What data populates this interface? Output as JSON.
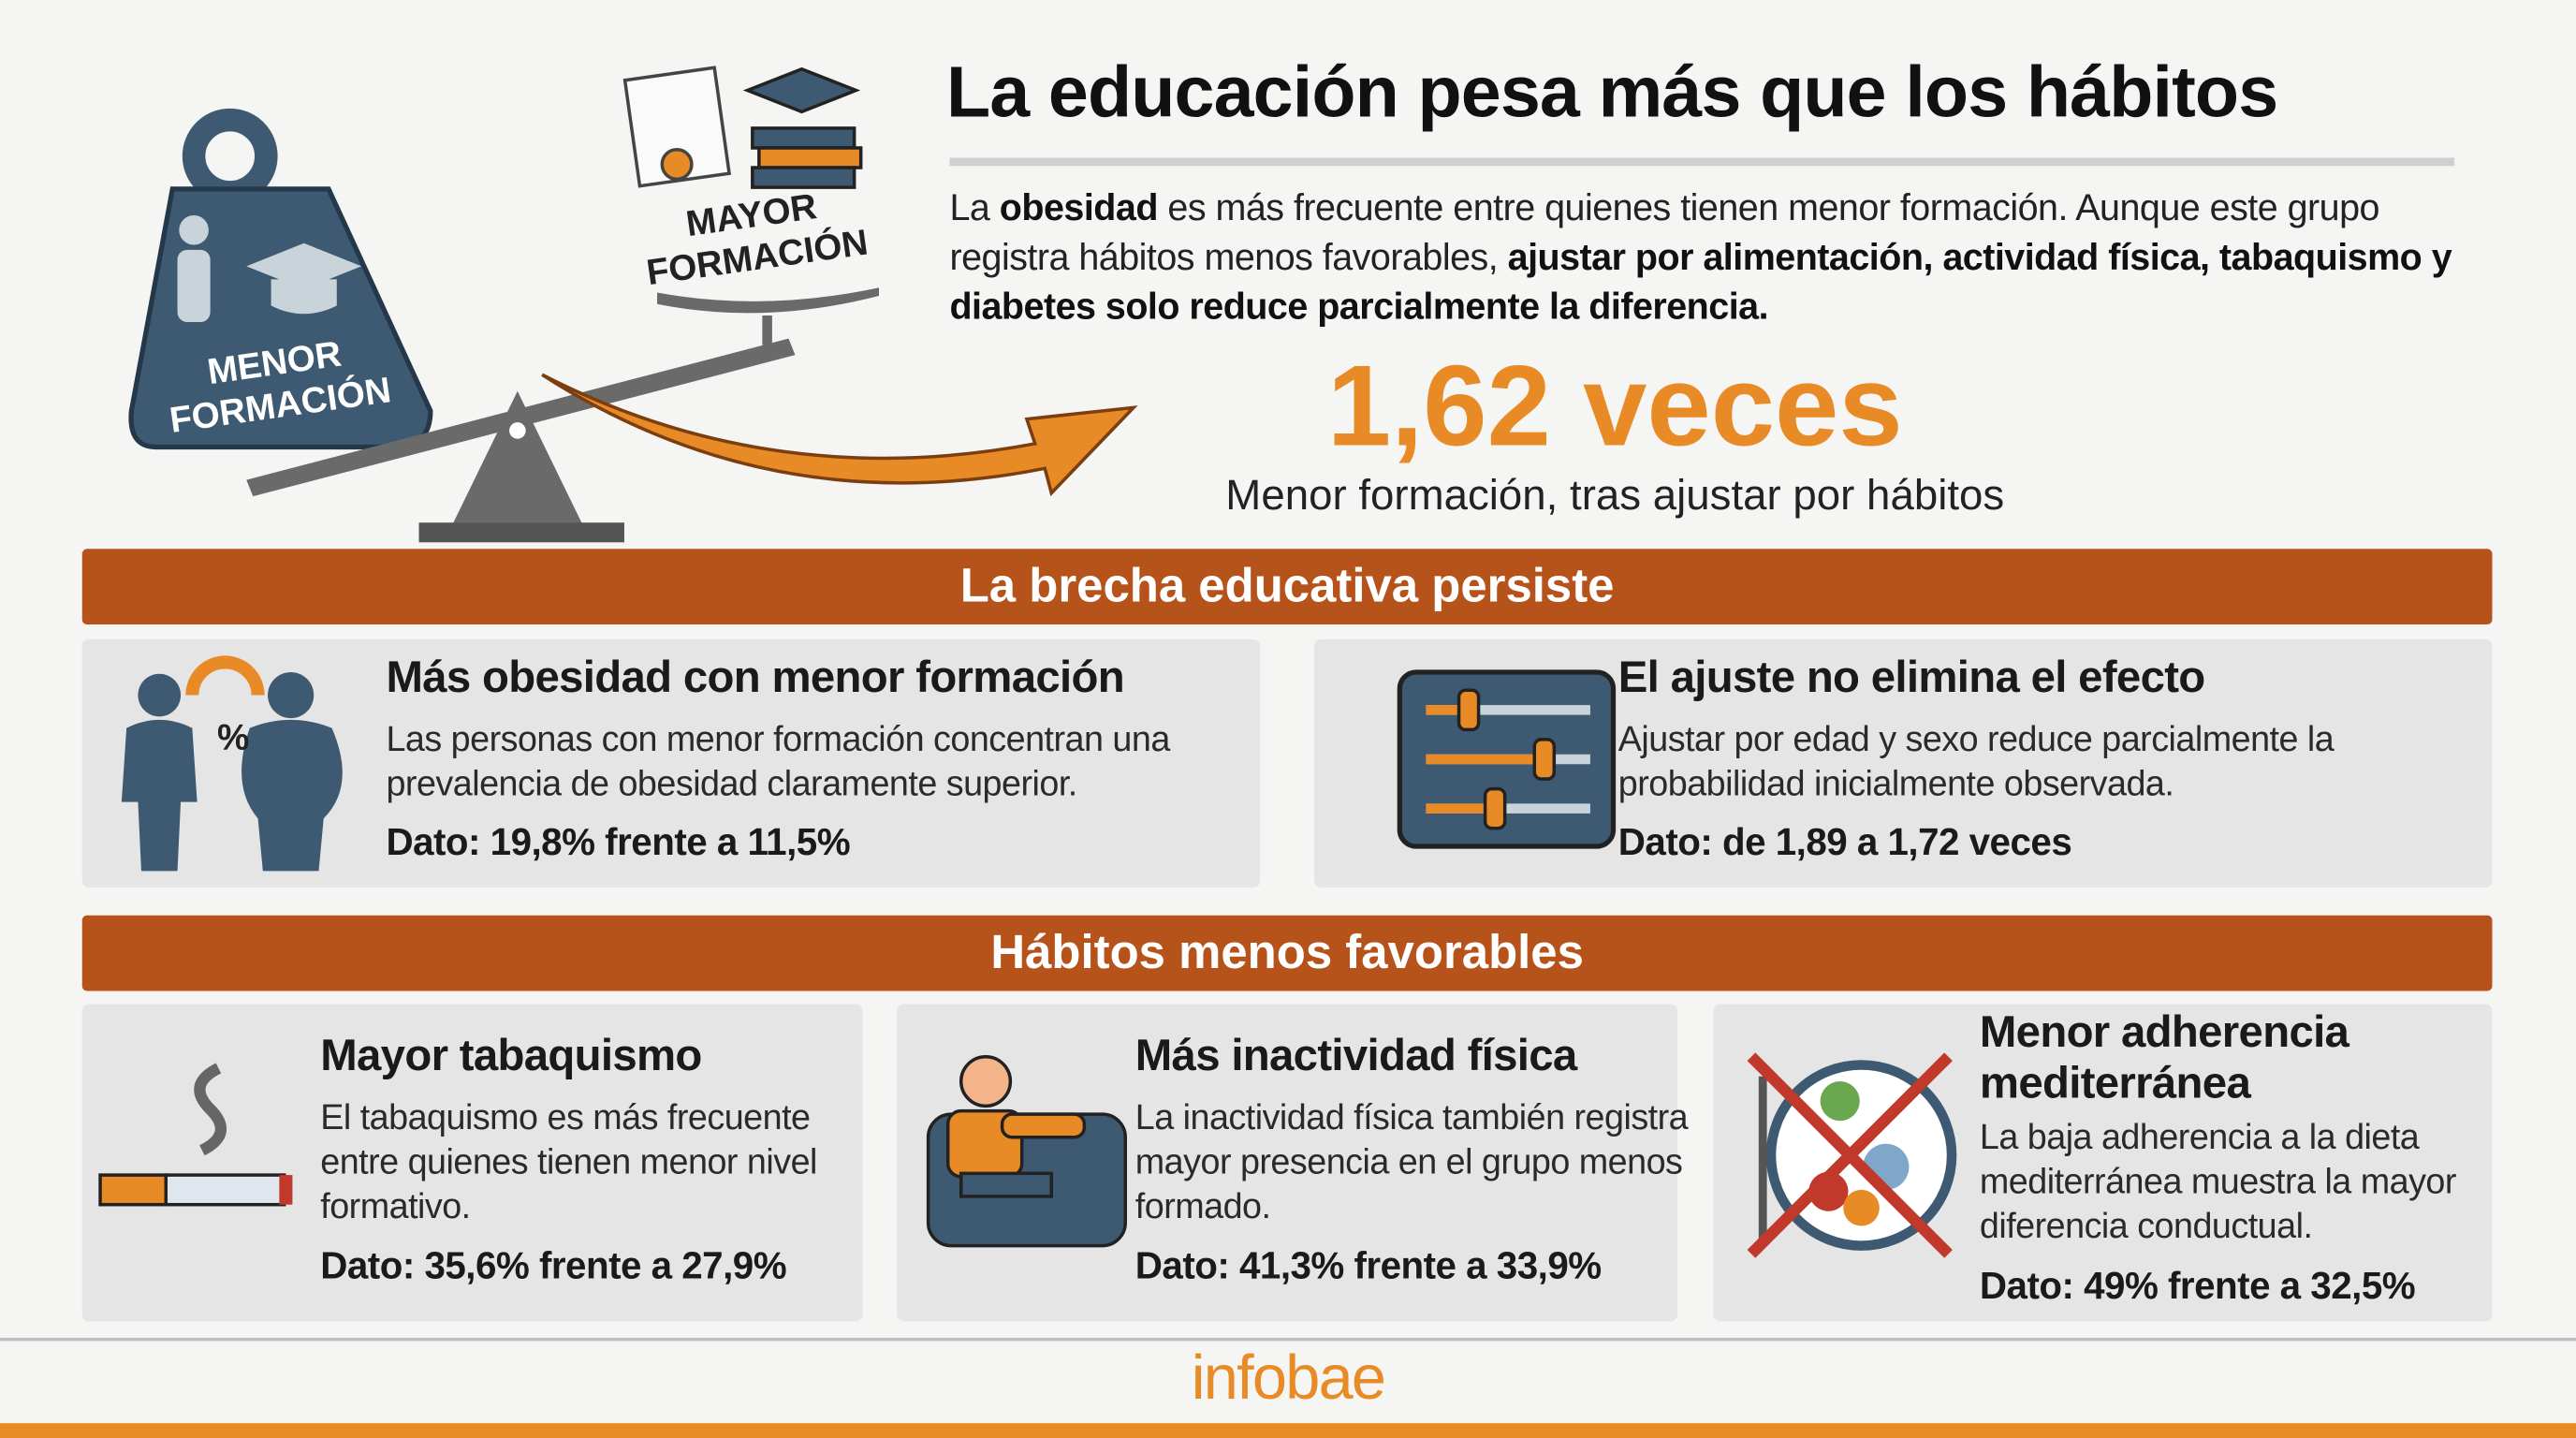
{
  "header": {
    "title": "La educación pesa más que los hábitos",
    "intro": [
      "La ",
      "obesidad",
      " es más frecuente entre quienes tienen menor formación. Aunque este grupo registra hábitos menos favorables, ",
      "ajustar por alimentación, actividad física, tabaquismo y diabetes solo reduce parcialmente la diferencia."
    ]
  },
  "illustration": {
    "low_label": [
      "MENOR",
      "FORMACIÓN"
    ],
    "high_label": [
      "MAYOR",
      "FORMACIÓN"
    ]
  },
  "key_stat": {
    "value": "1,62 veces",
    "caption": "Menor formación, tras ajustar por hábitos"
  },
  "sections": [
    {
      "title": "La brecha educativa persiste",
      "cards": [
        {
          "title": "Más obesidad con menor formación",
          "body": "Las personas con menor formación concentran una prevalencia de obesidad claramente superior.",
          "dato": "Dato: 19,8% frente a 11,5%"
        },
        {
          "title": "El ajuste no elimina el efecto",
          "body": "Ajustar por edad y sexo reduce parcialmente la probabilidad inicialmente observada.",
          "dato": "Dato: de 1,89 a 1,72 veces"
        }
      ]
    },
    {
      "title": "Hábitos menos favorables",
      "cards": [
        {
          "title": "Mayor tabaquismo",
          "body": "El tabaquismo es más frecuente entre quienes tienen menor nivel formativo.",
          "dato": "Dato: 35,6% frente a 27,9%"
        },
        {
          "title": "Más inactividad física",
          "body": "La inactividad física también registra mayor presencia en el grupo menos formado.",
          "dato": "Dato: 41,3% frente a 33,9%"
        },
        {
          "title": "Menor adherencia mediterránea",
          "body": "La baja adherencia a la dieta mediterránea muestra la mayor diferencia conductual.",
          "dato": "Dato: 49% frente a 32,5%"
        }
      ]
    }
  ],
  "footer": {
    "brand": "infobae"
  }
}
